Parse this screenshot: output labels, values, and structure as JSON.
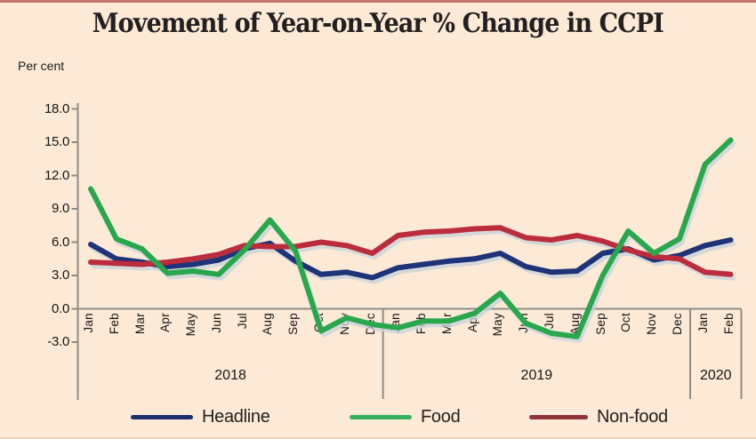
{
  "page": {
    "title": "Movement of Year-on-Year % Change in CCPI",
    "unit_label": "Per cent"
  },
  "colors": {
    "background": "#fcead6",
    "top_strip": "#c4766c",
    "axis": "#8e8c87",
    "line_shadow": "#c9d3db",
    "text": "#242021"
  },
  "chart_data": {
    "type": "line",
    "title": "Movement of Year-on-Year % Change in CCPI",
    "ylabel": "Per cent",
    "ylim": [
      -3.0,
      18.0
    ],
    "yticks": [
      18.0,
      15.0,
      12.0,
      9.0,
      6.0,
      3.0,
      0.0,
      -3.0
    ],
    "grid": "zero-line-only",
    "legend_position": "bottom",
    "categories": [
      "Jan",
      "Feb",
      "Mar",
      "Apr",
      "May",
      "Jun",
      "Jul",
      "Aug",
      "Sep",
      "Oct",
      "Nov",
      "Dec",
      "Jan",
      "Feb",
      "Mar",
      "Apr",
      "May",
      "Jun",
      "Jul",
      "Aug",
      "Sep",
      "Oct",
      "Nov",
      "Dec",
      "Jan",
      "Feb"
    ],
    "year_groups": [
      {
        "label": "2018",
        "months": 12
      },
      {
        "label": "2019",
        "months": 12
      },
      {
        "label": "2020",
        "months": 2
      }
    ],
    "series": [
      {
        "name": "Headline",
        "color": "#1e3378",
        "legend_color": "#1b2f6e",
        "values": [
          5.8,
          4.5,
          4.2,
          3.8,
          4.0,
          4.4,
          5.4,
          5.9,
          4.3,
          3.1,
          3.3,
          2.8,
          3.7,
          4.0,
          4.3,
          4.5,
          5.0,
          3.8,
          3.3,
          3.4,
          5.0,
          5.4,
          4.4,
          4.8,
          5.7,
          6.2
        ]
      },
      {
        "name": "Food",
        "color": "#29a74d",
        "legend_color": "#36b05c",
        "values": [
          10.8,
          6.3,
          5.4,
          3.2,
          3.4,
          3.1,
          5.3,
          8.0,
          5.2,
          -2.0,
          -0.8,
          -1.4,
          -1.7,
          -1.1,
          -1.1,
          -0.4,
          1.4,
          -1.3,
          -2.2,
          -2.5,
          3.0,
          7.0,
          5.0,
          6.3,
          13.0,
          15.2
        ]
      },
      {
        "name": "Non-food",
        "color": "#bb2c3d",
        "legend_color": "#8f3339",
        "values": [
          4.2,
          4.1,
          4.0,
          4.2,
          4.5,
          4.9,
          5.7,
          5.6,
          5.6,
          6.0,
          5.7,
          5.0,
          6.6,
          6.9,
          7.0,
          7.2,
          7.3,
          6.4,
          6.2,
          6.6,
          6.1,
          5.3,
          4.7,
          4.5,
          3.3,
          3.1
        ]
      }
    ]
  }
}
